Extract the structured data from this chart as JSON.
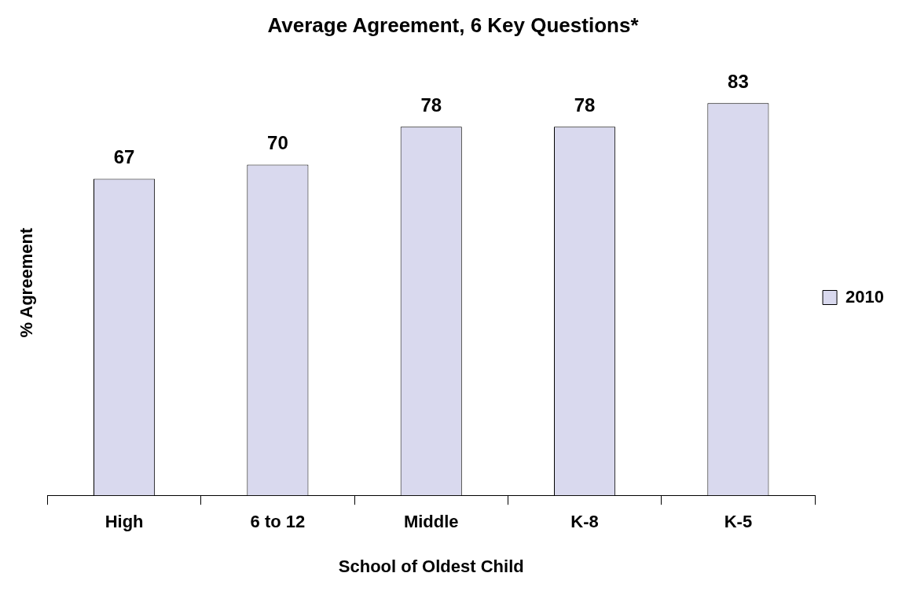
{
  "chart_data": {
    "type": "bar",
    "title": "Average Agreement, 6 Key Questions*",
    "xlabel": "School of Oldest Child",
    "ylabel": "% Agreement",
    "categories": [
      "High",
      "6 to 12",
      "Middle",
      "K-8",
      "K-5"
    ],
    "series": [
      {
        "name": "2010",
        "color": "#d9d9ee",
        "values": [
          67,
          70,
          78,
          78,
          83
        ]
      }
    ],
    "data_labels": true,
    "legend": "right"
  }
}
